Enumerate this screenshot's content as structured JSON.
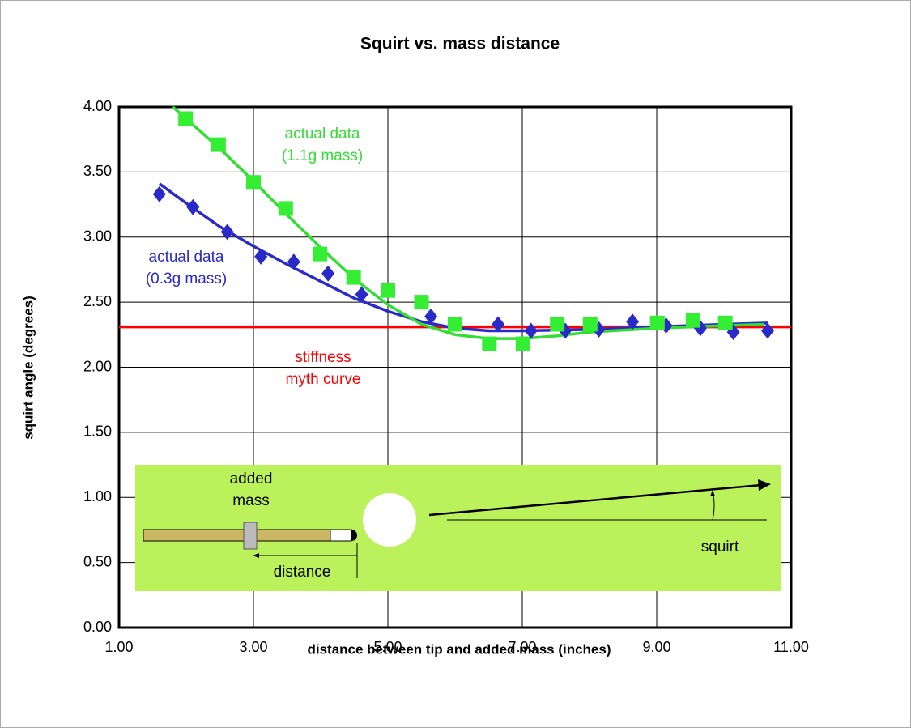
{
  "chart_data": {
    "type": "scatter",
    "title": "Squirt vs. mass distance",
    "x_label": "distance between tip and added mass (inches)",
    "y_label": "squirt angle (degrees)",
    "xlim": [
      1,
      11
    ],
    "xticks": [
      {
        "value": 1,
        "label": "1.00"
      },
      {
        "value": 3,
        "label": "3.00"
      },
      {
        "value": 5,
        "label": "5.00"
      },
      {
        "value": 7,
        "label": "7.00"
      },
      {
        "value": 9,
        "label": "9.00"
      },
      {
        "value": 11,
        "label": "11.00"
      }
    ],
    "ylim": [
      0,
      4
    ],
    "yticks": [
      {
        "value": 0,
        "label": "0.00"
      },
      {
        "value": 0.5,
        "label": "0.50"
      },
      {
        "value": 1,
        "label": "1.00"
      },
      {
        "value": 1.5,
        "label": "1.50"
      },
      {
        "value": 2,
        "label": "2.00"
      },
      {
        "value": 2.5,
        "label": "2.50"
      },
      {
        "value": 3,
        "label": "3.00"
      },
      {
        "value": 3.5,
        "label": "3.50"
      },
      {
        "value": 4,
        "label": "4.00"
      }
    ],
    "grid": true,
    "series": [
      {
        "type": "line",
        "color": "#ff0000",
        "x": [
          1,
          11
        ],
        "values": [
          2.31,
          2.31
        ]
      },
      {
        "type": "line",
        "color": "#2a2ac8",
        "x": [
          1.6,
          2,
          2.5,
          3,
          3.5,
          4,
          4.5,
          5,
          5.5,
          6,
          6.5,
          7,
          8,
          9,
          10,
          10.65
        ],
        "values": [
          3.41,
          3.26,
          3.08,
          2.93,
          2.79,
          2.66,
          2.53,
          2.43,
          2.35,
          2.3,
          2.28,
          2.28,
          2.29,
          2.31,
          2.33,
          2.34
        ]
      },
      {
        "type": "line",
        "color": "#33dd33",
        "x": [
          1.8,
          2.5,
          3,
          3.5,
          4,
          4.5,
          5,
          5.5,
          6,
          6.5,
          7,
          7.5,
          8,
          9,
          10,
          10.6
        ],
        "values": [
          4.0,
          3.68,
          3.43,
          3.17,
          2.92,
          2.68,
          2.48,
          2.33,
          2.25,
          2.22,
          2.22,
          2.24,
          2.27,
          2.3,
          2.32,
          2.33
        ]
      },
      {
        "type": "scatter",
        "marker": "diamond",
        "color": "#2a2ac8",
        "x": [
          1.6,
          2.1,
          2.61,
          3.11,
          3.6,
          4.11,
          4.61,
          5.64,
          6.64,
          7.13,
          7.64,
          8.14,
          8.64,
          9.14,
          9.65,
          10.14,
          10.65
        ],
        "values": [
          3.33,
          3.23,
          3.04,
          2.85,
          2.81,
          2.72,
          2.56,
          2.39,
          2.33,
          2.28,
          2.28,
          2.29,
          2.35,
          2.32,
          2.3,
          2.27,
          2.28
        ]
      },
      {
        "type": "scatter",
        "marker": "square",
        "color": "#33ee33",
        "x": [
          1.99,
          2.48,
          3.0,
          3.48,
          3.99,
          4.49,
          5.0,
          5.5,
          6.0,
          6.51,
          7.01,
          7.52,
          8.01,
          9.01,
          9.54,
          10.02
        ],
        "values": [
          3.91,
          3.71,
          3.42,
          3.22,
          2.87,
          2.69,
          2.59,
          2.5,
          2.33,
          2.18,
          2.18,
          2.33,
          2.33,
          2.34,
          2.36,
          2.34
        ]
      }
    ],
    "annotations": [
      {
        "lines": [
          "actual data",
          "(1.1g mass)"
        ],
        "color": "#33dd33"
      },
      {
        "lines": [
          "actual data",
          "(0.3g mass)"
        ],
        "color": "#2a2ac8"
      },
      {
        "lines": [
          "stiffness",
          "myth curve"
        ],
        "color": "#ff0000"
      }
    ]
  },
  "inset": {
    "mass_label": [
      "added",
      "mass"
    ],
    "distance_label": "distance",
    "squirt_label": "squirt"
  }
}
